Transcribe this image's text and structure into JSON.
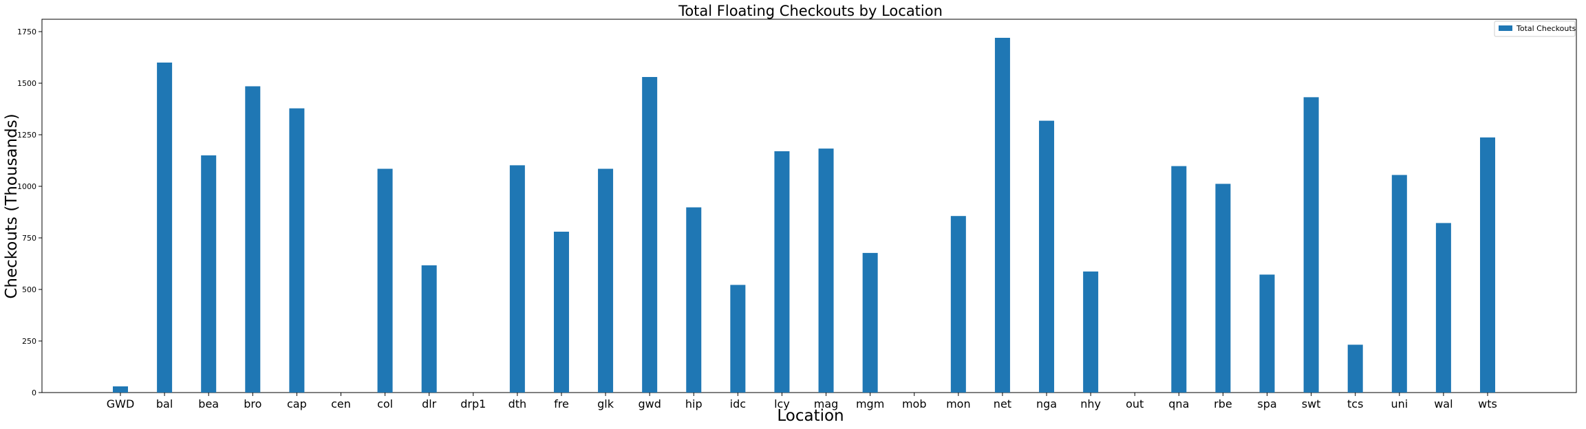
{
  "chart_data": {
    "type": "bar",
    "title": "Total Floating Checkouts by Location",
    "xlabel": "Location",
    "ylabel": "Checkouts (Thousands)",
    "ylim": [
      0,
      1810
    ],
    "yticks": [
      0,
      250,
      500,
      750,
      1000,
      1250,
      1500,
      1750
    ],
    "legend_position": "top-right",
    "bar_color": "#1f77b4",
    "categories": [
      "GWD",
      "bal",
      "bea",
      "bro",
      "cap",
      "cen",
      "col",
      "dlr",
      "drp1",
      "dth",
      "fre",
      "glk",
      "gwd",
      "hip",
      "idc",
      "lcy",
      "mag",
      "mgm",
      "mob",
      "mon",
      "net",
      "nga",
      "nhy",
      "out",
      "qna",
      "rbe",
      "spa",
      "swt",
      "tcs",
      "uni",
      "wal",
      "wts"
    ],
    "series": [
      {
        "name": "Total Checkouts",
        "values": [
          30,
          1600,
          1150,
          1485,
          1378,
          0,
          1085,
          617,
          0,
          1102,
          780,
          1085,
          1530,
          898,
          522,
          1170,
          1183,
          677,
          0,
          856,
          1720,
          1318,
          587,
          0,
          1098,
          1012,
          572,
          1432,
          232,
          1055,
          822,
          1237
        ]
      }
    ]
  }
}
